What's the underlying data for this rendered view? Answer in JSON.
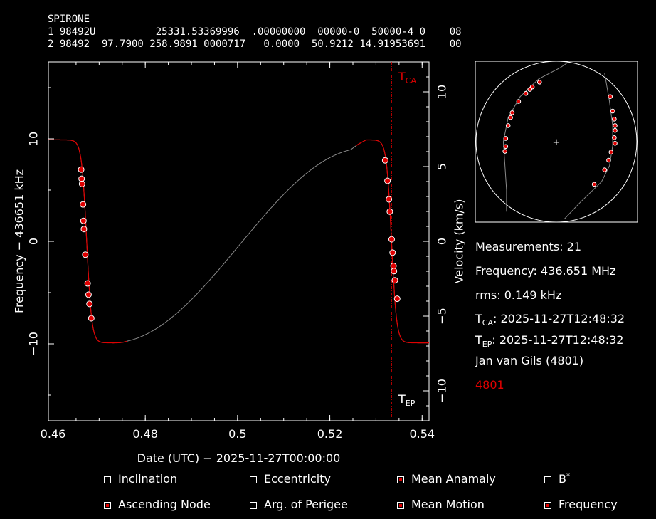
{
  "header": {
    "name": "SPIRONE",
    "tle_line1": "1 98492U          25331.53369996  .00000000  00000-0  50000-4 0    08",
    "tle_line2": "2 98492  97.7900 258.9891 0000717   0.0000  50.9212 14.91953691    00"
  },
  "chart_data": {
    "type": "line",
    "xlabel": "Date (UTC) − 2025-11-27T00:00:00",
    "ylabel_left": "Frequency − 436651 kHz",
    "ylabel_right": "Velocity (km/s)",
    "xlim": [
      0.459,
      0.5415
    ],
    "ylim_left": [
      -17.5,
      17.5
    ],
    "ylim_right": [
      -12.0,
      12.0
    ],
    "x_ticks": [
      0.46,
      0.48,
      0.5,
      0.52,
      0.54
    ],
    "x_tick_labels": [
      "0.46",
      "0.48",
      "0.5",
      "0.52",
      "0.54"
    ],
    "y_ticks_left": [
      10,
      0,
      -10
    ],
    "y_tick_labels_left": [
      "10",
      "0",
      "−10"
    ],
    "y_ticks_right": [
      10,
      5,
      0,
      -5,
      -10
    ],
    "y_tick_labels_right": [
      "10",
      "5",
      "0",
      "−5",
      "−10"
    ],
    "tca_x": 0.53337,
    "tca_label": "T",
    "tca_sub": "CA",
    "tep_label": "T",
    "tep_sub": "EP",
    "model_curve": {
      "amplitude_khz": 9.9,
      "pass1_center": 0.4673,
      "pass1_sign": -1,
      "pass2_center": 0.53337,
      "pass2_sign": -1,
      "transition_width": 0.0011
    },
    "measurements": [
      {
        "x": 0.4661,
        "y": 7.0
      },
      {
        "x": 0.4662,
        "y": 6.1
      },
      {
        "x": 0.4663,
        "y": 5.6
      },
      {
        "x": 0.4665,
        "y": 3.6
      },
      {
        "x": 0.4666,
        "y": 2.0
      },
      {
        "x": 0.4667,
        "y": 1.2
      },
      {
        "x": 0.467,
        "y": -1.3
      },
      {
        "x": 0.4675,
        "y": -4.1
      },
      {
        "x": 0.4677,
        "y": -5.2
      },
      {
        "x": 0.4679,
        "y": -6.1
      },
      {
        "x": 0.4683,
        "y": -7.5
      },
      {
        "x": 0.532,
        "y": 7.9
      },
      {
        "x": 0.5325,
        "y": 5.9
      },
      {
        "x": 0.5328,
        "y": 4.1
      },
      {
        "x": 0.533,
        "y": 2.9
      },
      {
        "x": 0.5334,
        "y": 0.2
      },
      {
        "x": 0.5336,
        "y": -1.1
      },
      {
        "x": 0.5338,
        "y": -2.4
      },
      {
        "x": 0.5339,
        "y": -2.9
      },
      {
        "x": 0.5341,
        "y": -3.8
      },
      {
        "x": 0.5346,
        "y": -5.6
      }
    ]
  },
  "sky_plot": {
    "center_marker": "+",
    "track_a_points": [
      [
        -0.68,
        0.33
      ],
      [
        -0.6,
        0.7
      ],
      [
        -0.48,
        0.87
      ],
      [
        -0.28,
        0.97
      ],
      [
        -0.1,
        0.95
      ],
      [
        0.04,
        0.86
      ],
      [
        0.14,
        0.75
      ],
      [
        0.22,
        0.6
      ]
    ],
    "track_b_points": [
      [
        -0.5,
        -0.63
      ],
      [
        -0.5,
        -0.35
      ],
      [
        -0.52,
        -0.1
      ],
      [
        -0.55,
        0.14
      ],
      [
        -0.46,
        0.25
      ],
      [
        -0.35,
        0.5
      ],
      [
        -0.27,
        0.6
      ],
      [
        -0.18,
        0.73
      ],
      [
        -0.06,
        0.82
      ],
      [
        0.04,
        0.86
      ]
    ],
    "track_a_markers": [
      [
        -0.6,
        0.7
      ],
      [
        -0.55,
        0.66
      ],
      [
        -0.48,
        0.62
      ]
    ],
    "track_b_markers": [
      [
        -0.55,
        0.14
      ],
      [
        -0.53,
        0.05
      ],
      [
        -0.52,
        -0.06
      ],
      [
        -0.51,
        -0.1
      ],
      [
        -0.5,
        -0.2
      ],
      [
        -0.48,
        -0.28
      ],
      [
        -0.43,
        -0.35
      ],
      [
        -0.36,
        -0.45
      ],
      [
        -0.26,
        -0.53
      ],
      [
        -0.12,
        -0.6
      ]
    ],
    "track_c_points": [
      [
        0.64,
        0.48
      ],
      [
        0.68,
        0.3
      ],
      [
        0.7,
        0.1
      ],
      [
        0.7,
        -0.05
      ],
      [
        0.67,
        -0.25
      ],
      [
        0.6,
        -0.45
      ],
      [
        0.45,
        -0.62
      ]
    ],
    "track_c_markers": [
      [
        0.64,
        0.48
      ],
      [
        0.68,
        0.3
      ],
      [
        0.69,
        0.2
      ],
      [
        0.69,
        0.13
      ],
      [
        0.7,
        0.05
      ],
      [
        0.7,
        -0.02
      ],
      [
        0.7,
        -0.07
      ],
      [
        0.68,
        -0.2
      ],
      [
        0.65,
        -0.3
      ],
      [
        0.62,
        -0.43
      ],
      [
        0.5,
        -0.6
      ]
    ],
    "track_d_points": [
      [
        -0.7,
        0.15
      ],
      [
        -0.62,
        0.34
      ],
      [
        -0.5,
        0.54
      ],
      [
        -0.4,
        0.62
      ],
      [
        -0.25,
        0.72
      ]
    ],
    "track_d_markers": [
      [
        -0.62,
        0.34
      ],
      [
        -0.55,
        0.45
      ],
      [
        -0.47,
        0.57
      ],
      [
        -0.38,
        0.64
      ],
      [
        -0.33,
        0.67
      ],
      [
        -0.28,
        0.7
      ],
      [
        -0.22,
        0.74
      ]
    ]
  },
  "info": {
    "measurements": "Measurements: 21",
    "frequency": "Frequency: 436.651 MHz",
    "rms": "rms: 0.149 kHz",
    "tca_prefix": "T",
    "tca_sub": "CA",
    "tca_value": ": 2025-11-27T12:48:32",
    "tep_prefix": "T",
    "tep_sub": "EP",
    "tep_value": ": 2025-11-27T12:48:32",
    "observer": "Jan van Gils (4801)",
    "site_id": "4801",
    "site_id_color": "#e00000"
  },
  "controls": {
    "inclination": {
      "label": "Inclination",
      "checked": false
    },
    "eccentricity": {
      "label": "Eccentricity",
      "checked": false
    },
    "mean_anomaly": {
      "label": "Mean Anamaly",
      "checked": true
    },
    "bstar": {
      "label": "B",
      "sup": "*",
      "checked": false
    },
    "ascending_node": {
      "label": "Ascending Node",
      "checked": true
    },
    "arg_perigee": {
      "label": "Arg. of Perigee",
      "checked": false
    },
    "mean_motion": {
      "label": "Mean Motion",
      "checked": true
    },
    "frequency": {
      "label": "Frequency",
      "checked": true
    }
  },
  "colors": {
    "axis": "#ffffff",
    "fit_curve": "#e00000",
    "model_curve": "#8a8a8a",
    "marker_fill": "#e00000",
    "marker_edge": "#ffffff",
    "tca_line": "#e00000"
  }
}
